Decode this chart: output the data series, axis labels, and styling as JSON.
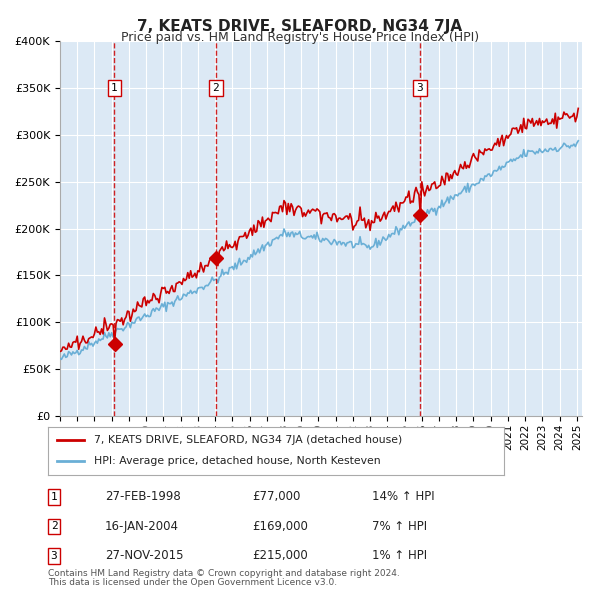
{
  "title": "7, KEATS DRIVE, SLEAFORD, NG34 7JA",
  "subtitle": "Price paid vs. HM Land Registry's House Price Index (HPI)",
  "plot_bg_color": "#dce9f5",
  "x_start_year": 1995,
  "x_end_year": 2025,
  "y_min": 0,
  "y_max": 400000,
  "y_ticks": [
    0,
    50000,
    100000,
    150000,
    200000,
    250000,
    300000,
    350000,
    400000
  ],
  "sale_events": [
    {
      "label": "1",
      "year": 1998.15,
      "price": 77000,
      "date_str": "27-FEB-1998",
      "price_str": "£77,000",
      "hpi_str": "14% ↑ HPI"
    },
    {
      "label": "2",
      "year": 2004.05,
      "price": 169000,
      "date_str": "16-JAN-2004",
      "price_str": "£169,000",
      "hpi_str": "7% ↑ HPI"
    },
    {
      "label": "3",
      "year": 2015.9,
      "price": 215000,
      "date_str": "27-NOV-2015",
      "price_str": "£215,000",
      "hpi_str": "1% ↑ HPI"
    }
  ],
  "hpi_line_color": "#6aafd6",
  "price_line_color": "#cc0000",
  "marker_color": "#cc0000",
  "dashed_line_color": "#cc0000",
  "grid_color": "#ffffff",
  "legend_label_price": "7, KEATS DRIVE, SLEAFORD, NG34 7JA (detached house)",
  "legend_label_hpi": "HPI: Average price, detached house, North Kesteven",
  "footer_line1": "Contains HM Land Registry data © Crown copyright and database right 2024.",
  "footer_line2": "This data is licensed under the Open Government Licence v3.0."
}
